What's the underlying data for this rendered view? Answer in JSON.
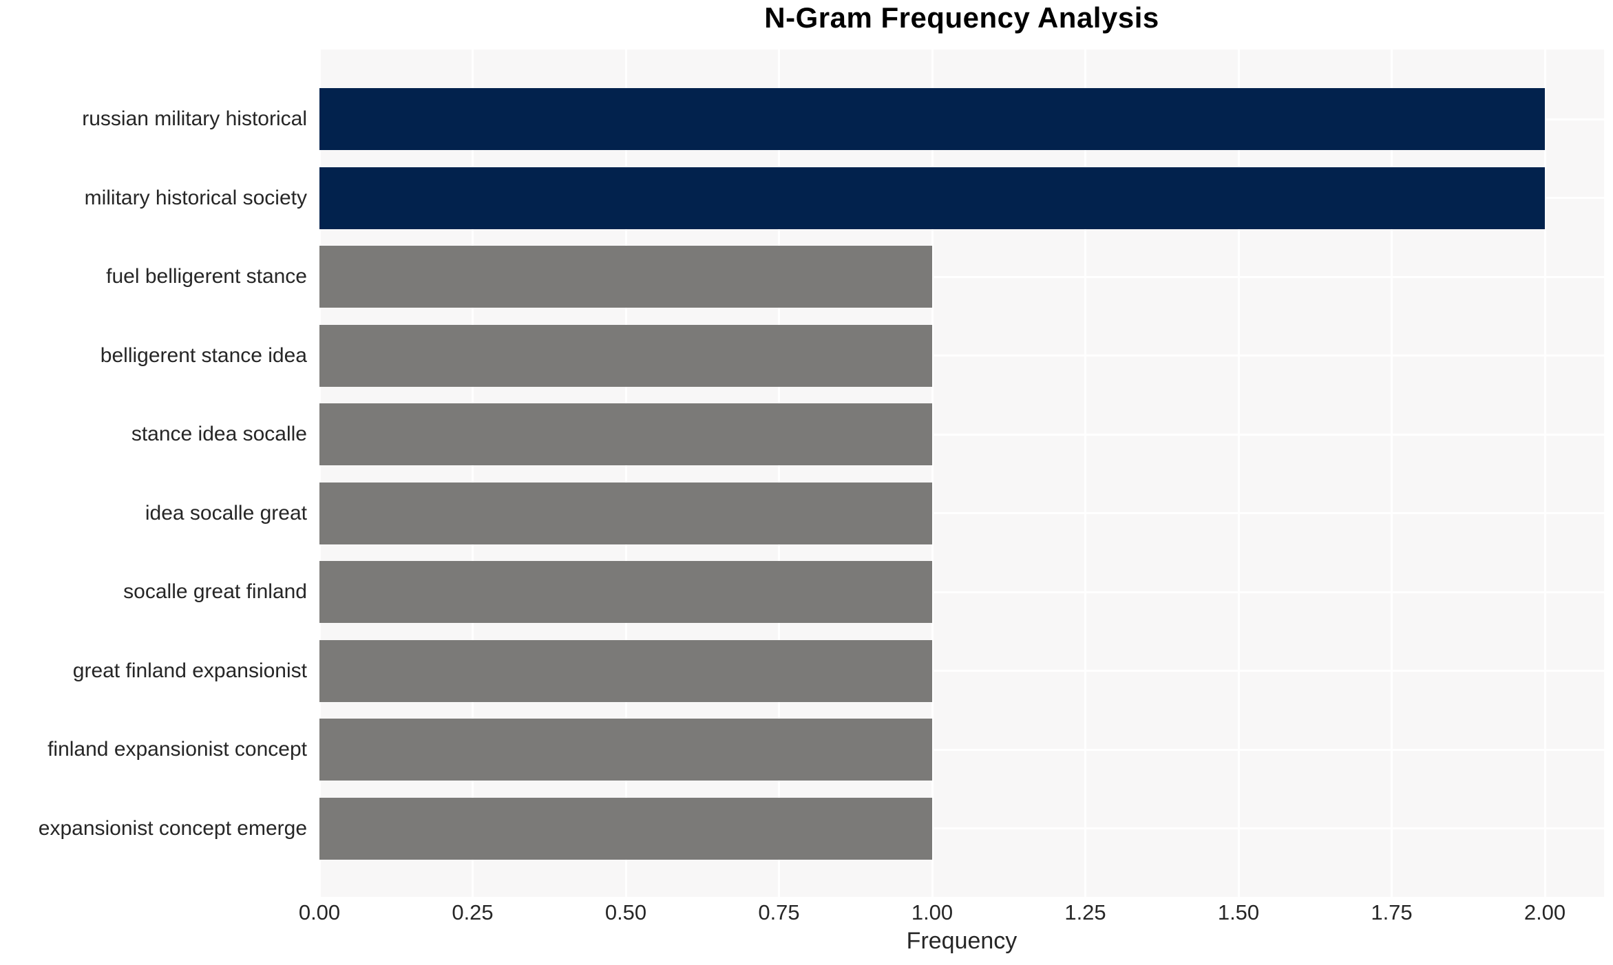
{
  "chart_data": {
    "type": "bar",
    "orientation": "horizontal",
    "title": "N-Gram Frequency Analysis",
    "xlabel": "Frequency",
    "ylabel": "",
    "categories": [
      "russian military historical",
      "military historical society",
      "fuel belligerent stance",
      "belligerent stance idea",
      "stance idea socalle",
      "idea socalle great",
      "socalle great finland",
      "great finland expansionist",
      "finland expansionist concept",
      "expansionist concept emerge"
    ],
    "values": [
      2,
      2,
      1,
      1,
      1,
      1,
      1,
      1,
      1,
      1
    ],
    "bar_colors": [
      "#02224d",
      "#02224d",
      "#7b7a78",
      "#7b7a78",
      "#7b7a78",
      "#7b7a78",
      "#7b7a78",
      "#7b7a78",
      "#7b7a78",
      "#7b7a78"
    ],
    "xticks": [
      0,
      0.25,
      0.5,
      0.75,
      1.0,
      1.25,
      1.5,
      1.75,
      2.0
    ],
    "xtick_labels": [
      "0.00",
      "0.25",
      "0.50",
      "0.75",
      "1.00",
      "1.25",
      "1.50",
      "1.75",
      "2.00"
    ],
    "xlim": [
      0,
      2.097
    ],
    "grid": true,
    "legend_position": "none",
    "colors": {
      "highlight_bar": "#02224d",
      "default_bar": "#7b7a78",
      "panel_background": "#f8f7f7",
      "gridline": "#ffffff",
      "text": "#262626",
      "title_text": "#000000"
    }
  }
}
